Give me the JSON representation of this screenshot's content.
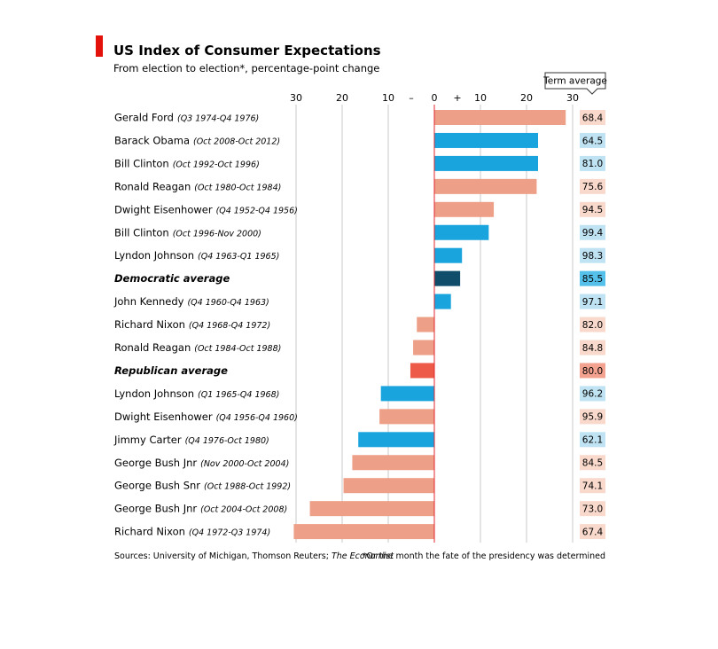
{
  "chart_data": {
    "type": "bar",
    "orientation": "horizontal",
    "title": "US Index of Consumer Expectations",
    "subtitle": "From election to election*, percentage-point change",
    "term_average_label": "Term average",
    "xlim": [
      -30,
      30
    ],
    "x_ticks": [
      {
        "value": -30,
        "label": "30"
      },
      {
        "value": -20,
        "label": "20"
      },
      {
        "value": -10,
        "label": "10"
      },
      {
        "value": -5,
        "label": "–"
      },
      {
        "value": 0,
        "label": "0"
      },
      {
        "value": 5,
        "label": "+"
      },
      {
        "value": 10,
        "label": "10"
      },
      {
        "value": 20,
        "label": "20"
      },
      {
        "value": 30,
        "label": "30"
      }
    ],
    "gridlines": [
      -30,
      -20,
      -10,
      10,
      20,
      30
    ],
    "colors": {
      "republican": "#ee9f87",
      "democratic": "#1aa4de",
      "democratic_average": "#0f4d6a",
      "republican_average": "#ee5a48",
      "zero_line": "#e0262c",
      "grid": "#c8c8c8",
      "accent_bar": "#e3120b",
      "term_rep_bg": "#f9d9cc",
      "term_dem_bg": "#bfe3f3",
      "term_dem_avg_bg": "#55c0ea",
      "term_rep_avg_bg": "#f3a28f"
    },
    "rows": [
      {
        "name": "Gerald Ford",
        "period": "(Q3 1974-Q4 1976)",
        "value": 28.5,
        "term_average": "68.4",
        "party": "republican"
      },
      {
        "name": "Barack Obama",
        "period": "(Oct 2008-Oct 2012)",
        "value": 22.5,
        "term_average": "64.5",
        "party": "democratic"
      },
      {
        "name": "Bill Clinton",
        "period": "(Oct 1992-Oct 1996)",
        "value": 22.5,
        "term_average": "81.0",
        "party": "democratic"
      },
      {
        "name": "Ronald Reagan",
        "period": "(Oct 1980-Oct 1984)",
        "value": 22.2,
        "term_average": "75.6",
        "party": "republican"
      },
      {
        "name": "Dwight Eisenhower",
        "period": "(Q4 1952-Q4 1956)",
        "value": 12.9,
        "term_average": "94.5",
        "party": "republican"
      },
      {
        "name": "Bill Clinton",
        "period": "(Oct 1996-Nov 2000)",
        "value": 11.8,
        "term_average": "99.4",
        "party": "democratic"
      },
      {
        "name": "Lyndon Johnson",
        "period": "(Q4 1963-Q1 1965)",
        "value": 6.0,
        "term_average": "98.3",
        "party": "democratic"
      },
      {
        "name": "Democratic average",
        "period": "",
        "value": 5.6,
        "term_average": "85.5",
        "party": "democratic_average"
      },
      {
        "name": "John Kennedy",
        "period": "(Q4 1960-Q4 1963)",
        "value": 3.6,
        "term_average": "97.1",
        "party": "democratic"
      },
      {
        "name": "Richard Nixon",
        "period": "(Q4 1968-Q4 1972)",
        "value": -3.8,
        "term_average": "82.0",
        "party": "republican"
      },
      {
        "name": "Ronald Reagan",
        "period": "(Oct 1984-Oct 1988)",
        "value": -4.6,
        "term_average": "84.8",
        "party": "republican"
      },
      {
        "name": "Republican average",
        "period": "",
        "value": -5.2,
        "term_average": "80.0",
        "party": "republican_average"
      },
      {
        "name": "Lyndon Johnson",
        "period": "(Q1 1965-Q4 1968)",
        "value": -11.6,
        "term_average": "96.2",
        "party": "democratic"
      },
      {
        "name": "Dwight Eisenhower",
        "period": "(Q4 1956-Q4 1960)",
        "value": -11.9,
        "term_average": "95.9",
        "party": "republican"
      },
      {
        "name": "Jimmy Carter",
        "period": "(Q4 1976-Oct 1980)",
        "value": -16.5,
        "term_average": "62.1",
        "party": "democratic"
      },
      {
        "name": "George Bush Jnr",
        "period": "(Nov 2000-Oct 2004)",
        "value": -17.8,
        "term_average": "84.5",
        "party": "republican"
      },
      {
        "name": "George Bush Snr",
        "period": "(Oct 1988-Oct 1992)",
        "value": -19.7,
        "term_average": "74.1",
        "party": "republican"
      },
      {
        "name": "George Bush Jnr",
        "period": "(Oct 2004-Oct 2008)",
        "value": -27.0,
        "term_average": "73.0",
        "party": "republican"
      },
      {
        "name": "Richard Nixon",
        "period": "(Q4 1972-Q3 1974)",
        "value": -30.5,
        "term_average": "67.4",
        "party": "republican"
      }
    ],
    "source": "Sources: University of Michigan, Thomson Reuters; ",
    "source_italic": "The Economist",
    "footnote": "*Or the month the fate of the presidency was determined"
  }
}
